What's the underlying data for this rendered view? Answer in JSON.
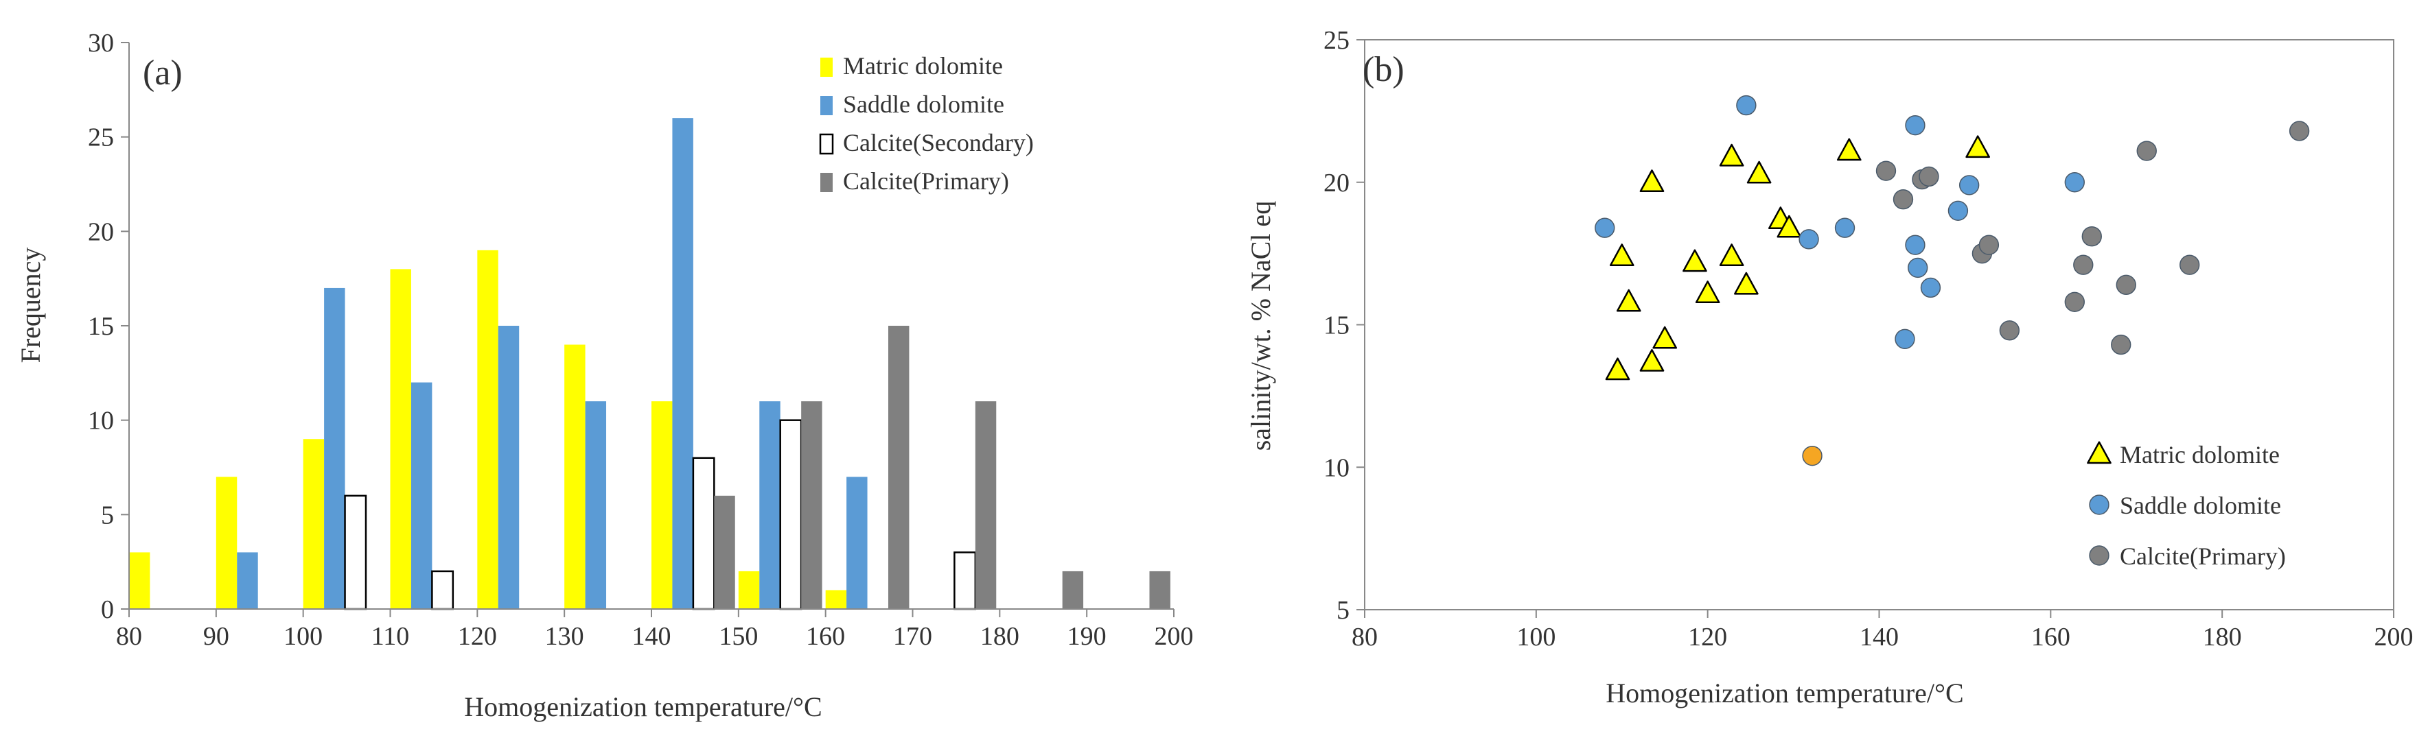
{
  "chart_data": [
    {
      "type": "bar",
      "panel_label": "(a)",
      "xlabel": "Homogenization temperature/°C",
      "ylabel": "Frequency",
      "xlim": [
        80,
        200
      ],
      "ylim": [
        0,
        30
      ],
      "x_ticks": [
        80,
        90,
        100,
        110,
        120,
        130,
        140,
        150,
        160,
        170,
        180,
        190,
        200
      ],
      "y_ticks": [
        0,
        5,
        10,
        15,
        20,
        25,
        30
      ],
      "grid": false,
      "legend_position": "top-right",
      "bin_width": 10,
      "series": [
        {
          "name": "Matric dolomite",
          "color": "#ffff00",
          "bins": [
            80,
            90,
            100,
            110,
            120,
            130,
            140,
            150,
            160
          ],
          "values": [
            3,
            7,
            9,
            18,
            19,
            14,
            11,
            2,
            1
          ]
        },
        {
          "name": "Saddle dolomite",
          "color": "#5b9bd5",
          "bins": [
            90,
            100,
            110,
            120,
            130,
            140,
            150,
            160
          ],
          "values": [
            3,
            17,
            12,
            15,
            11,
            26,
            11,
            7
          ]
        },
        {
          "name": "Calcite(Secondary)",
          "color": "#ffffff",
          "bins": [
            100,
            110,
            140,
            150,
            170
          ],
          "values": [
            6,
            2,
            8,
            10,
            3
          ]
        },
        {
          "name": "Calcite(Primary)",
          "color": "#808080",
          "bins": [
            140,
            150,
            160,
            170,
            180,
            190
          ],
          "values": [
            6,
            11,
            15,
            11,
            2,
            2
          ]
        }
      ]
    },
    {
      "type": "scatter",
      "panel_label": "(b)",
      "xlabel": "Homogenization temperature/°C",
      "ylabel": "salinity/wt. % NaCl eq",
      "xlim": [
        80,
        200
      ],
      "ylim": [
        5,
        25
      ],
      "x_ticks": [
        80,
        100,
        120,
        140,
        160,
        180,
        200
      ],
      "y_ticks": [
        5,
        10,
        15,
        20,
        25
      ],
      "grid": false,
      "legend_position": "bottom-right",
      "series": [
        {
          "name": "Matric dolomite",
          "marker": "triangle",
          "color": "#ffff00",
          "points": [
            [
              109.5,
              13.4
            ],
            [
              110,
              17.4
            ],
            [
              110.8,
              15.8
            ],
            [
              113.5,
              20.0
            ],
            [
              113.5,
              13.7
            ],
            [
              115,
              14.5
            ],
            [
              118.5,
              17.2
            ],
            [
              120,
              16.1
            ],
            [
              122.8,
              20.9
            ],
            [
              122.8,
              17.4
            ],
            [
              124.5,
              16.4
            ],
            [
              126,
              20.3
            ],
            [
              128.5,
              18.7
            ],
            [
              129.5,
              18.4
            ],
            [
              136.5,
              21.1
            ],
            [
              151.5,
              21.2
            ]
          ]
        },
        {
          "name": "Saddle dolomite",
          "marker": "circle",
          "color": "#5b9bd5",
          "points": [
            [
              108,
              18.4
            ],
            [
              124.5,
              22.7
            ],
            [
              131.8,
              18.0
            ],
            [
              136,
              18.4
            ],
            [
              143,
              14.5
            ],
            [
              144.2,
              22.0
            ],
            [
              144.2,
              17.8
            ],
            [
              144.5,
              17.0
            ],
            [
              146,
              16.3
            ],
            [
              149.2,
              19.0
            ],
            [
              150.5,
              19.9
            ],
            [
              162.8,
              20.0
            ]
          ]
        },
        {
          "name": "Calcite(Primary)",
          "marker": "circle",
          "color": "#808080",
          "points": [
            [
              140.8,
              20.4
            ],
            [
              142.8,
              19.4
            ],
            [
              145,
              20.1
            ],
            [
              145.8,
              20.2
            ],
            [
              152,
              17.5
            ],
            [
              152.8,
              17.8
            ],
            [
              155.2,
              14.8
            ],
            [
              162.8,
              15.8
            ],
            [
              163.8,
              17.1
            ],
            [
              164.8,
              18.1
            ],
            [
              168.2,
              14.3
            ],
            [
              168.8,
              16.4
            ],
            [
              171.2,
              21.1
            ],
            [
              176.2,
              17.1
            ],
            [
              189,
              21.8
            ]
          ]
        },
        {
          "marker": "circle",
          "color": "#f5a623",
          "points": [
            [
              132.2,
              10.4
            ]
          ]
        }
      ]
    }
  ]
}
